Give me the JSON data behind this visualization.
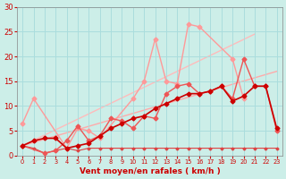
{
  "background_color": "#cceee8",
  "grid_color": "#aadddd",
  "xlabel": "Vent moyen/en rafales ( km/h )",
  "xlabel_color": "#cc0000",
  "tick_color": "#cc0000",
  "xlim": [
    -0.5,
    23.5
  ],
  "ylim": [
    0,
    30
  ],
  "xticks": [
    0,
    1,
    2,
    3,
    4,
    5,
    6,
    7,
    8,
    9,
    10,
    11,
    12,
    13,
    14,
    15,
    16,
    17,
    18,
    19,
    20,
    21,
    22,
    23
  ],
  "yticks": [
    0,
    5,
    10,
    15,
    20,
    25,
    30
  ],
  "line1_x": [
    0,
    1,
    4,
    5,
    6,
    7,
    10,
    11,
    12,
    13,
    14,
    15,
    16,
    19,
    20
  ],
  "line1_y": [
    6.5,
    11.5,
    1.5,
    5.5,
    5.0,
    3.5,
    11.5,
    15.0,
    23.5,
    15.0,
    14.5,
    26.5,
    26.0,
    19.5,
    11.5
  ],
  "line1_color": "#ff9999",
  "line1_lw": 1.0,
  "line2_x": [
    0,
    21
  ],
  "line2_y": [
    2.0,
    24.5
  ],
  "line2_color": "#ffbbbb",
  "line2_lw": 1.0,
  "line3_x": [
    0,
    23
  ],
  "line3_y": [
    2.0,
    17.0
  ],
  "line3_color": "#ffaaaa",
  "line3_lw": 1.0,
  "line4_x": [
    0,
    1,
    2,
    3,
    4,
    5,
    6,
    7,
    8,
    9,
    10,
    11,
    12,
    13,
    14,
    15,
    16,
    17,
    18,
    19,
    20,
    21,
    22,
    23
  ],
  "line4_y": [
    2.0,
    3.0,
    3.5,
    3.5,
    1.5,
    2.0,
    2.5,
    4.0,
    5.5,
    6.5,
    7.5,
    8.0,
    9.5,
    10.5,
    11.5,
    12.5,
    12.5,
    13.0,
    14.0,
    11.0,
    12.0,
    14.0,
    14.0,
    5.5
  ],
  "line4_color": "#cc0000",
  "line4_lw": 1.2,
  "line5_x": [
    0,
    1,
    2,
    3,
    4,
    5,
    6,
    7,
    8,
    9,
    10,
    11,
    12,
    13,
    14,
    15,
    16,
    17,
    18,
    19,
    20,
    21,
    22,
    23
  ],
  "line5_y": [
    2.0,
    1.5,
    0.5,
    1.0,
    1.5,
    1.0,
    1.5,
    1.5,
    1.5,
    1.5,
    1.5,
    1.5,
    1.5,
    1.5,
    1.5,
    1.5,
    1.5,
    1.5,
    1.5,
    1.5,
    1.5,
    1.5,
    1.5,
    1.5
  ],
  "line5_color": "#dd4444",
  "line5_lw": 0.8,
  "line6_x": [
    0,
    2,
    3,
    4,
    5,
    6,
    7,
    8,
    9,
    10,
    11,
    12,
    13,
    14,
    15,
    16,
    17,
    18,
    19,
    20,
    21,
    22,
    23
  ],
  "line6_y": [
    2.0,
    0.5,
    1.0,
    3.0,
    6.0,
    3.0,
    4.0,
    7.5,
    7.0,
    5.5,
    8.0,
    7.5,
    12.5,
    14.0,
    14.5,
    12.5,
    13.0,
    14.0,
    11.5,
    19.5,
    14.0,
    14.0,
    5.0
  ],
  "line6_color": "#ee5555",
  "line6_lw": 1.0
}
